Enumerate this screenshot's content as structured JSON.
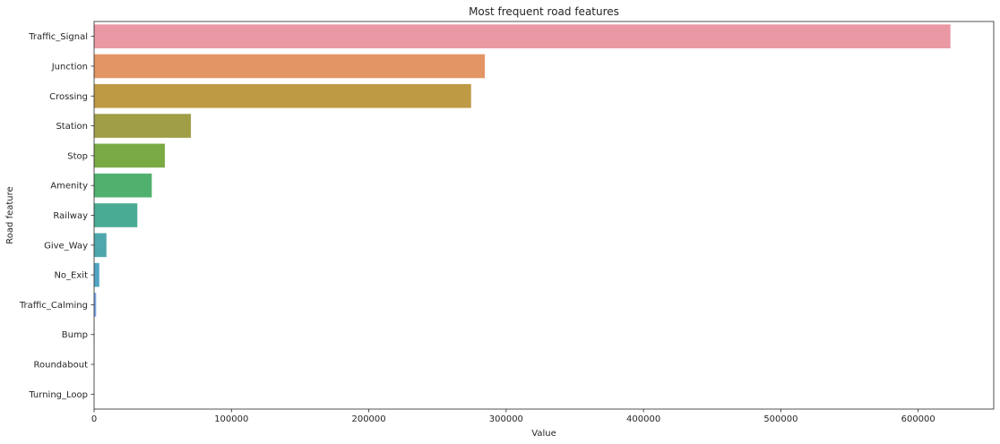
{
  "chart_data": {
    "type": "bar",
    "orientation": "horizontal",
    "title": "Most frequent road features",
    "xlabel": "Value",
    "ylabel": "Road feature",
    "categories": [
      "Traffic_Signal",
      "Junction",
      "Crossing",
      "Station",
      "Stop",
      "Amenity",
      "Railway",
      "Give_Way",
      "No_Exit",
      "Traffic_Calming",
      "Bump",
      "Roundabout",
      "Turning_Loop"
    ],
    "values": [
      623500,
      284500,
      274500,
      70500,
      51500,
      42000,
      31500,
      9000,
      3800,
      1500,
      300,
      100,
      0
    ],
    "colors": [
      "#ea98a4",
      "#e39564",
      "#bf9a45",
      "#a09e46",
      "#7aaa44",
      "#4fb16d",
      "#4aab94",
      "#4ea8ab",
      "#51a5c2",
      "#7aa5e6",
      "#a89ded",
      "#d68fe8",
      "#ec91ca"
    ],
    "xlim": [
      0,
      655000
    ],
    "xticks": [
      0,
      100000,
      200000,
      300000,
      400000,
      500000,
      600000
    ],
    "grid": false,
    "legend": "none"
  }
}
